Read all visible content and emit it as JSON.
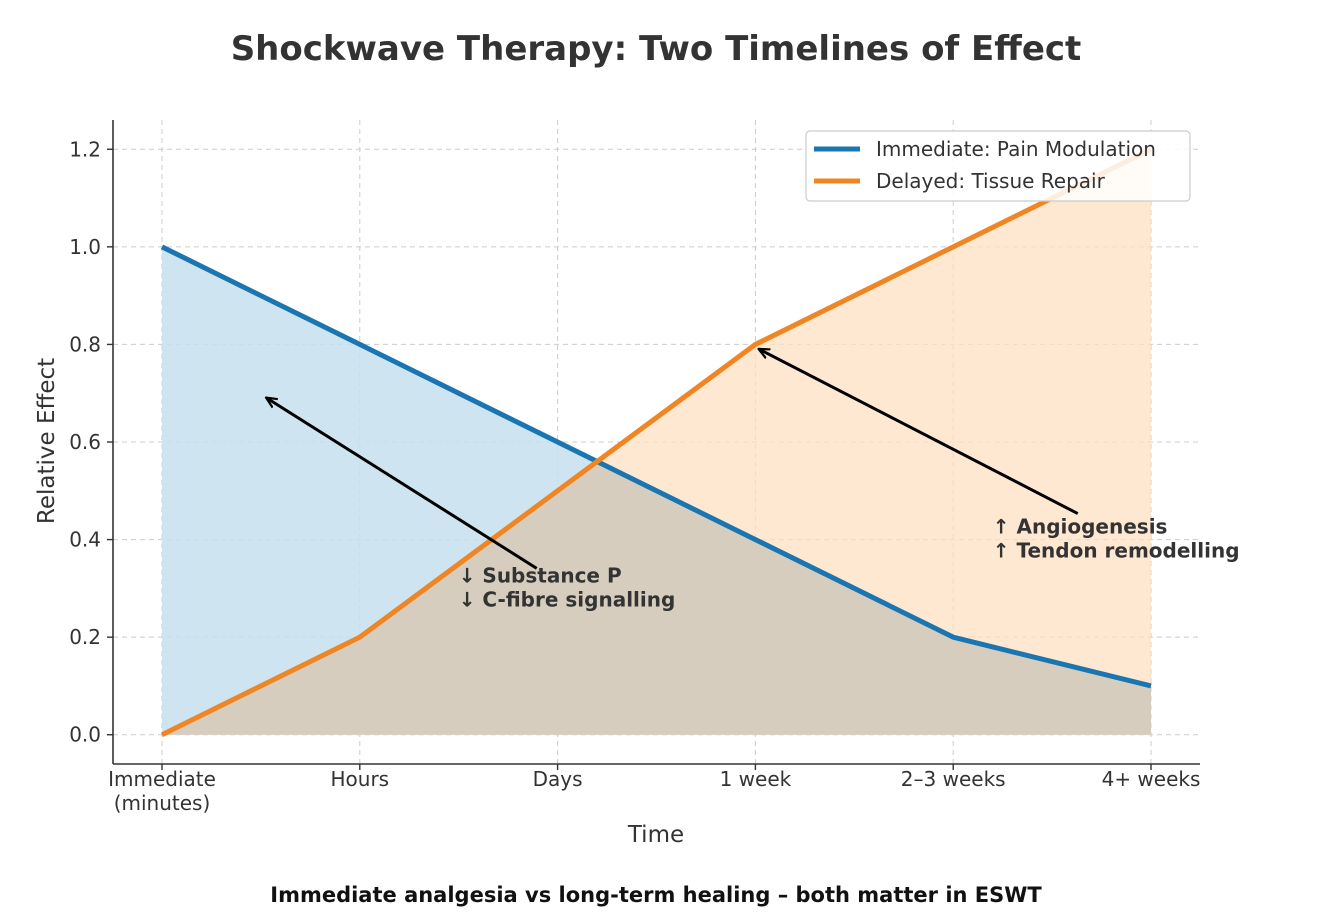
{
  "chart_data": {
    "type": "area",
    "title": "Shockwave Therapy: Two Timelines of Effect",
    "caption": "Immediate analgesia vs long-term healing – both matter in ESWT",
    "xlabel": "Time",
    "ylabel": "Relative Effect",
    "categories": [
      "Immediate\n(minutes)",
      "Hours",
      "Days",
      "1 week",
      "2–3 weeks",
      "4+ weeks"
    ],
    "ylim": [
      -0.06,
      1.26
    ],
    "yticks": [
      "0.0",
      "0.2",
      "0.4",
      "0.6",
      "0.8",
      "1.0",
      "1.2"
    ],
    "grid": true,
    "legend": "top-right",
    "series": [
      {
        "name": "Immediate: Pain Modulation",
        "color": "#1a75b0",
        "fill": "#c5e0ee",
        "values": [
          1.0,
          0.8,
          0.6,
          0.4,
          0.2,
          0.1
        ]
      },
      {
        "name": "Delayed: Tissue Repair",
        "color": "#f08623",
        "fill": "#fde0c3",
        "values": [
          0.0,
          0.2,
          0.5,
          0.8,
          1.0,
          1.2
        ]
      }
    ],
    "annotations": [
      {
        "lines": [
          "↓ Substance P",
          "↓ C-fibre signalling"
        ],
        "arrow_to": [
          0.53,
          0.69
        ],
        "text_at": [
          1.5,
          0.3
        ]
      },
      {
        "lines": [
          "↑ Angiogenesis",
          "↑ Tendon remodelling"
        ],
        "arrow_to": [
          3.02,
          0.79
        ],
        "text_at": [
          4.2,
          0.4
        ]
      }
    ]
  }
}
